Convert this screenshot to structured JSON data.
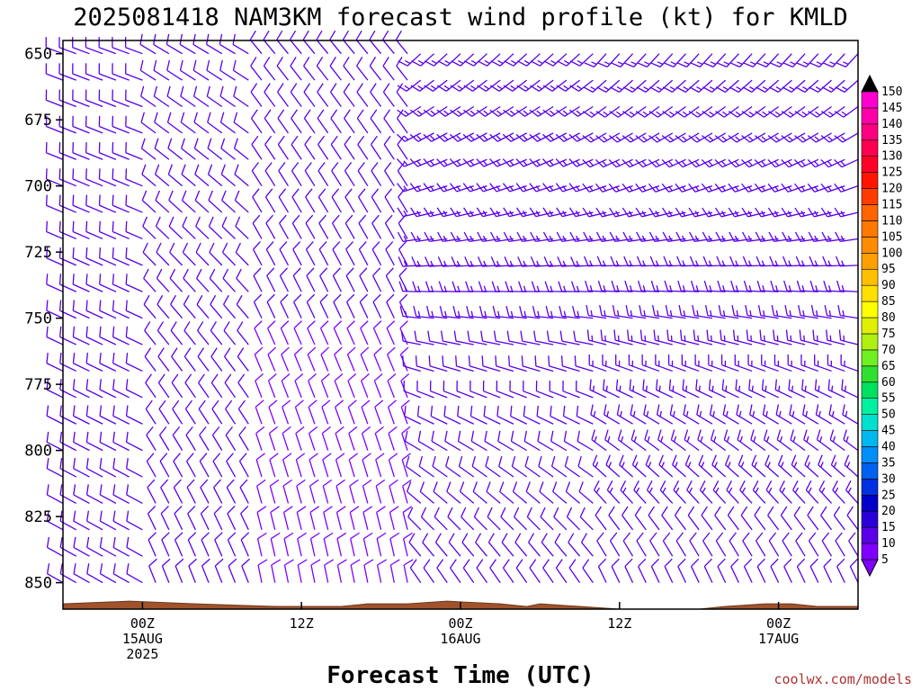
{
  "chart_data": {
    "type": "wind-barb time-height",
    "title": "2025081418 NAM3KM forecast wind profile (kt) for KMLD",
    "xlabel": "Forecast Time (UTC)",
    "credit": "coolwx.com/models",
    "ylim": [
      860,
      645
    ],
    "yticks": [
      "650",
      "675",
      "700",
      "725",
      "750",
      "775",
      "800",
      "825",
      "850"
    ],
    "xticks": [
      {
        "hour": 6,
        "lines": [
          "00Z",
          "15AUG",
          "2025"
        ]
      },
      {
        "hour": 18,
        "lines": [
          "12Z"
        ]
      },
      {
        "hour": 30,
        "lines": [
          "00Z",
          "16AUG"
        ]
      },
      {
        "hour": 42,
        "lines": [
          "12Z"
        ]
      },
      {
        "hour": 54,
        "lines": [
          "00Z",
          "17AUG"
        ]
      }
    ],
    "xlim": [
      0,
      60
    ],
    "time_step_hours": 1,
    "pressure_levels": [
      650,
      660,
      670,
      680,
      690,
      700,
      710,
      720,
      730,
      740,
      750,
      760,
      770,
      780,
      790,
      800,
      810,
      820,
      830,
      840,
      850,
      860
    ],
    "colorbar": {
      "levels": [
        5,
        10,
        15,
        20,
        25,
        30,
        35,
        40,
        45,
        50,
        55,
        60,
        65,
        70,
        75,
        80,
        85,
        90,
        95,
        100,
        105,
        110,
        115,
        120,
        125,
        130,
        135,
        140,
        145,
        150
      ],
      "colors": [
        "#7f00ff",
        "#5a00e8",
        "#2a00d8",
        "#0000c8",
        "#0030e0",
        "#0060f0",
        "#0090f8",
        "#00b8f0",
        "#00e0d0",
        "#00f0a0",
        "#00e060",
        "#30e030",
        "#70f020",
        "#b0f010",
        "#e0f000",
        "#ffff00",
        "#ffe000",
        "#ffc000",
        "#ffa000",
        "#ff8c00",
        "#ff7800",
        "#ff6400",
        "#ff3c00",
        "#ff1400",
        "#ff0028",
        "#ff0050",
        "#ff0080",
        "#ff00a8",
        "#ff00d0",
        "#000000"
      ]
    },
    "terrain_color": "#a0522d",
    "surface_pressure": [
      [
        0,
        858
      ],
      [
        5,
        857
      ],
      [
        10,
        858
      ],
      [
        16,
        859
      ],
      [
        21,
        859
      ],
      [
        23,
        858
      ],
      [
        26,
        858
      ],
      [
        29,
        857
      ],
      [
        33,
        858
      ],
      [
        35,
        859
      ],
      [
        36,
        858
      ],
      [
        42,
        860
      ],
      [
        44,
        860
      ],
      [
        48,
        860
      ],
      [
        50,
        859
      ],
      [
        53,
        858
      ],
      [
        55,
        858
      ],
      [
        57,
        859
      ],
      [
        60,
        859
      ]
    ],
    "wind_regimes": [
      {
        "hours": [
          0,
          6
        ],
        "upper_dir_deg": 290,
        "upper_speed_kt": 10,
        "lower_dir_deg": 300,
        "lower_speed_kt": 10
      },
      {
        "hours": [
          6,
          14
        ],
        "upper_dir_deg": 300,
        "upper_speed_kt": 12,
        "lower_dir_deg": 340,
        "lower_speed_kt": 10
      },
      {
        "hours": [
          14,
          26
        ],
        "upper_dir_deg": 320,
        "upper_speed_kt": 12,
        "lower_dir_deg": 350,
        "lower_speed_kt": 8
      },
      {
        "hours": [
          26,
          40
        ],
        "upper_dir_deg": 225,
        "upper_speed_kt": 15,
        "lower_dir_deg": 330,
        "lower_speed_kt": 10
      },
      {
        "hours": [
          40,
          60
        ],
        "upper_dir_deg": 220,
        "upper_speed_kt": 15,
        "lower_dir_deg": 340,
        "lower_speed_kt": 12
      }
    ]
  }
}
